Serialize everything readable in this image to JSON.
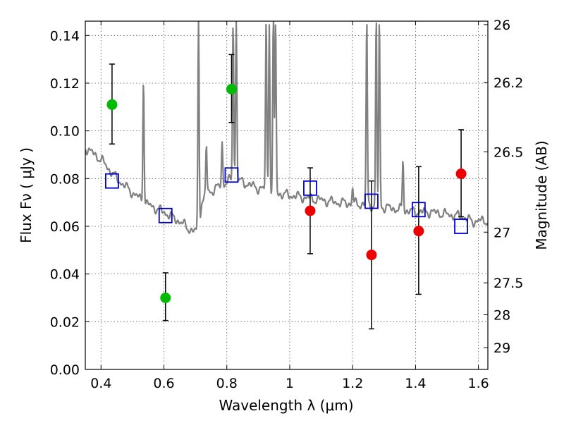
{
  "chart_data": {
    "type": "scatter",
    "xlabel": "Wavelength  λ (μm)",
    "ylabel": "Flux  Fν  ( μJy )",
    "y2label": "Magnitude (AB)",
    "xlim": [
      0.35,
      1.63
    ],
    "ylim": [
      0.0,
      0.146
    ],
    "grid": true,
    "x_ticks": [
      0.4,
      0.6,
      0.8,
      1.0,
      1.2,
      1.4,
      1.6
    ],
    "x_tick_labels": [
      "0.4",
      "0.6",
      "0.8",
      "1",
      "1.2",
      "1.4",
      "1.6"
    ],
    "y_ticks": [
      0.0,
      0.02,
      0.04,
      0.06,
      0.08,
      0.1,
      0.12,
      0.14
    ],
    "y_tick_labels": [
      "0.00",
      "0.02",
      "0.04",
      "0.06",
      "0.08",
      "0.10",
      "0.12",
      "0.14"
    ],
    "mag_ticks": [
      26,
      26.2,
      26.5,
      27,
      27.5,
      28,
      29
    ],
    "mag_tick_labels": [
      "26",
      "26.2",
      "26.5",
      "27",
      "27.5",
      "28",
      "29"
    ],
    "colors": {
      "spectrum": "#808080",
      "detection": "#00bb00",
      "nondetection": "#ee0000",
      "model": "#0000cc",
      "errorbar": "#000000",
      "grid": "#555555"
    },
    "series": [
      {
        "kind": "detection",
        "x": [
          0.435,
          0.605,
          0.815
        ],
        "y": [
          0.111,
          0.03,
          0.1175
        ],
        "ylow": [
          0.0945,
          0.0205,
          0.1035
        ],
        "yhigh": [
          0.128,
          0.0405,
          0.132
        ]
      },
      {
        "kind": "nondetection",
        "x": [
          1.065,
          1.26,
          1.41,
          1.545
        ],
        "y": [
          0.0665,
          0.048,
          0.058,
          0.082
        ],
        "ylow": [
          0.0485,
          0.017,
          0.0315,
          0.064
        ],
        "yhigh": [
          0.0845,
          0.079,
          0.085,
          0.1005
        ]
      },
      {
        "kind": "model",
        "x": [
          0.435,
          0.605,
          0.815,
          1.065,
          1.26,
          1.41,
          1.545
        ],
        "y": [
          0.079,
          0.0645,
          0.0815,
          0.076,
          0.0705,
          0.067,
          0.06
        ]
      }
    ],
    "spectrum": {
      "continuum": [
        [
          0.35,
          0.093
        ],
        [
          0.37,
          0.091
        ],
        [
          0.4,
          0.088
        ],
        [
          0.45,
          0.08
        ],
        [
          0.5,
          0.074
        ],
        [
          0.55,
          0.069
        ],
        [
          0.6,
          0.066
        ],
        [
          0.65,
          0.062
        ],
        [
          0.69,
          0.058
        ],
        [
          0.71,
          0.058
        ],
        [
          0.72,
          0.07
        ],
        [
          0.74,
          0.074
        ],
        [
          0.78,
          0.077
        ],
        [
          0.82,
          0.08
        ],
        [
          0.86,
          0.078
        ],
        [
          0.9,
          0.076
        ],
        [
          0.95,
          0.074
        ],
        [
          1.0,
          0.073
        ],
        [
          1.05,
          0.072
        ],
        [
          1.1,
          0.071
        ],
        [
          1.15,
          0.07
        ],
        [
          1.2,
          0.0695
        ],
        [
          1.25,
          0.069
        ],
        [
          1.3,
          0.068
        ],
        [
          1.35,
          0.067
        ],
        [
          1.4,
          0.066
        ],
        [
          1.45,
          0.066
        ],
        [
          1.5,
          0.065
        ],
        [
          1.55,
          0.064
        ],
        [
          1.58,
          0.062
        ],
        [
          1.63,
          0.0625
        ]
      ],
      "lines": [
        [
          0.535,
          0.122
        ],
        [
          0.71,
          0.146
        ],
        [
          0.735,
          0.094
        ],
        [
          0.785,
          0.095
        ],
        [
          0.82,
          0.146
        ],
        [
          0.83,
          0.146
        ],
        [
          0.925,
          0.146
        ],
        [
          0.935,
          0.146
        ],
        [
          0.948,
          0.146
        ],
        [
          0.955,
          0.146
        ],
        [
          1.245,
          0.146
        ],
        [
          1.275,
          0.146
        ],
        [
          1.285,
          0.146
        ],
        [
          1.36,
          0.088
        ],
        [
          1.2,
          0.076
        ]
      ]
    }
  }
}
